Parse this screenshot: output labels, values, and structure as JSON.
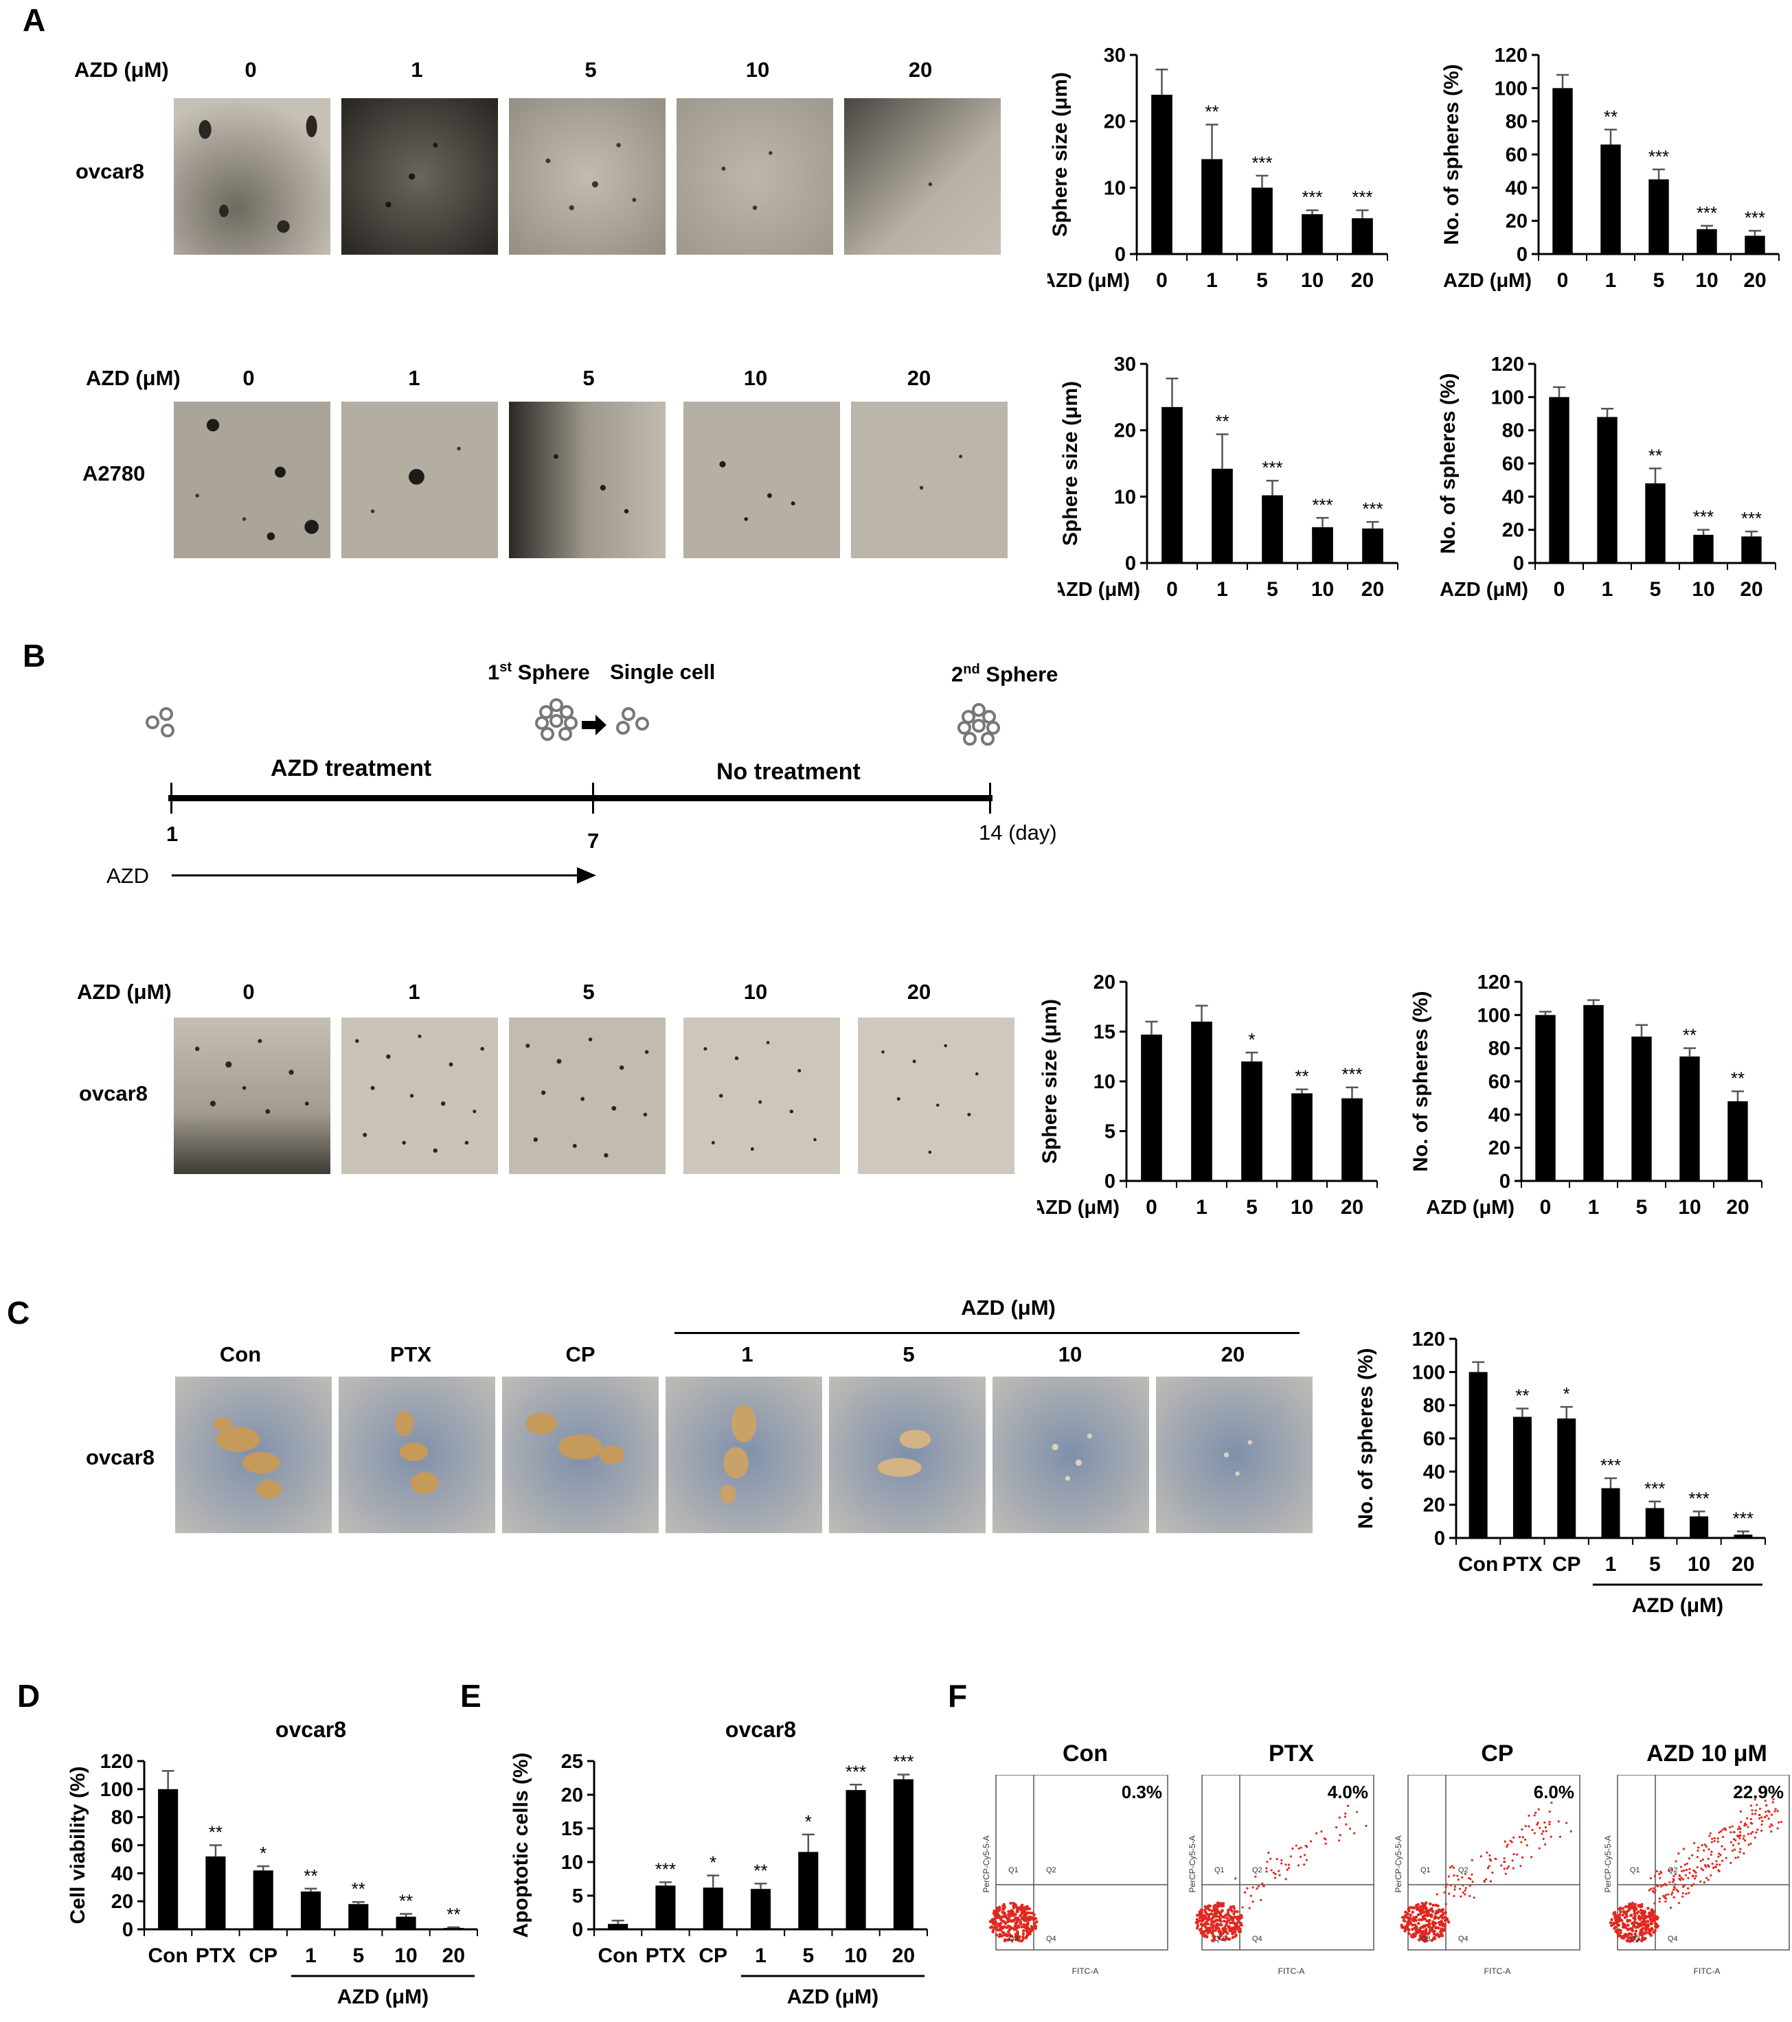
{
  "panel_labels": {
    "a": "A",
    "b": "B",
    "c": "C",
    "d": "D",
    "e": "E",
    "f": "F"
  },
  "azd_row_label": "AZD (μM)",
  "conc_labels": [
    "0",
    "1",
    "5",
    "10",
    "20"
  ],
  "cell_lines": {
    "ovcar8": "ovcar8",
    "a2780": "A2780"
  },
  "timeline": {
    "first_sphere_base": "1",
    "first_sphere_sup": "st",
    "first_sphere_word": " Sphere",
    "single_cell": "Single cell",
    "second_sphere_base": "2",
    "second_sphere_sup": "nd",
    "second_sphere_word": " Sphere",
    "azd_treatment": "AZD treatment",
    "no_treatment": "No treatment",
    "day_1": "1",
    "day_7": "7",
    "day_14": "14 (day)",
    "azd_arrow_label": "AZD"
  },
  "panel_c": {
    "group_header": "AZD (μM)",
    "column_labels": [
      "Con",
      "PTX",
      "CP",
      "1",
      "5",
      "10",
      "20"
    ]
  },
  "panel_f": {
    "titles": [
      "Con",
      "PTX",
      "CP",
      "AZD 10 μM"
    ],
    "percents": [
      "0.3%",
      "4.0%",
      "6.0%",
      "22.9%"
    ],
    "quadrants": [
      "Q1",
      "Q2",
      "Q3",
      "Q4"
    ],
    "x_axis": "FITC-A",
    "y_axis": "PerCP-Cy5-5-A"
  },
  "chart_data": [
    {
      "id": "A1",
      "type": "bar",
      "categories": [
        "0",
        "1",
        "5",
        "10",
        "20"
      ],
      "values": [
        24,
        14.3,
        10,
        6,
        5.4
      ],
      "errors": [
        3.8,
        5.2,
        1.8,
        0.6,
        1.2
      ],
      "sig": [
        "",
        "**",
        "***",
        "***",
        "***"
      ],
      "ylabel": "Sphere size (μm)",
      "xlabel": "AZD (μM)",
      "ylim": [
        0,
        30
      ],
      "yticks": [
        0,
        10,
        20,
        30
      ]
    },
    {
      "id": "A2",
      "type": "bar",
      "categories": [
        "0",
        "1",
        "5",
        "10",
        "20"
      ],
      "values": [
        100,
        66,
        45,
        15,
        11
      ],
      "errors": [
        8,
        9,
        6,
        2,
        3
      ],
      "sig": [
        "",
        "**",
        "***",
        "***",
        "***"
      ],
      "ylabel": "No. of spheres (%)",
      "xlabel": "AZD (μM)",
      "ylim": [
        0,
        120
      ],
      "yticks": [
        0,
        20,
        40,
        60,
        80,
        100,
        120
      ]
    },
    {
      "id": "A3",
      "type": "bar",
      "categories": [
        "0",
        "1",
        "5",
        "10",
        "20"
      ],
      "values": [
        23.5,
        14.2,
        10.2,
        5.4,
        5.2
      ],
      "errors": [
        4.3,
        5.2,
        2.2,
        1.4,
        1
      ],
      "sig": [
        "",
        "**",
        "***",
        "***",
        "***"
      ],
      "ylabel": "Sphere size (μm)",
      "xlabel": "AZD (μM)",
      "ylim": [
        0,
        30
      ],
      "yticks": [
        0,
        10,
        20,
        30
      ]
    },
    {
      "id": "A4",
      "type": "bar",
      "categories": [
        "0",
        "1",
        "5",
        "10",
        "20"
      ],
      "values": [
        100,
        88,
        48,
        17,
        16
      ],
      "errors": [
        6,
        5,
        9,
        3,
        3
      ],
      "sig": [
        "",
        "",
        "**",
        "***",
        "***"
      ],
      "ylabel": "No. of spheres (%)",
      "xlabel": "AZD (μM)",
      "ylim": [
        0,
        120
      ],
      "yticks": [
        0,
        20,
        40,
        60,
        80,
        100,
        120
      ]
    },
    {
      "id": "B1",
      "type": "bar",
      "categories": [
        "0",
        "1",
        "5",
        "10",
        "20"
      ],
      "values": [
        14.7,
        16,
        12,
        8.8,
        8.3
      ],
      "errors": [
        1.3,
        1.6,
        0.9,
        0.4,
        1.1
      ],
      "sig": [
        "",
        "",
        "*",
        "**",
        "***"
      ],
      "ylabel": "Sphere size (μm)",
      "xlabel": "AZD (μM)",
      "ylim": [
        0,
        20
      ],
      "yticks": [
        0,
        5,
        10,
        15,
        20
      ]
    },
    {
      "id": "B2",
      "type": "bar",
      "categories": [
        "0",
        "1",
        "5",
        "10",
        "20"
      ],
      "values": [
        100,
        106,
        87,
        75,
        48
      ],
      "errors": [
        2,
        3,
        7,
        5,
        6
      ],
      "sig": [
        "",
        "",
        "",
        "**",
        "**"
      ],
      "ylabel": "No. of spheres  (%)",
      "xlabel": "AZD (μM)",
      "ylim": [
        0,
        120
      ],
      "yticks": [
        0,
        20,
        40,
        60,
        80,
        100,
        120
      ]
    },
    {
      "id": "C1",
      "type": "bar",
      "categories": [
        "Con",
        "PTX",
        "CP",
        "1",
        "5",
        "10",
        "20"
      ],
      "values": [
        100,
        73,
        72,
        30,
        18,
        13,
        2
      ],
      "errors": [
        6,
        5,
        7,
        6,
        4,
        3,
        2
      ],
      "sig": [
        "",
        "**",
        "*",
        "***",
        "***",
        "***",
        "***"
      ],
      "ylabel": "No. of spheres  (%)",
      "group_label": "AZD (μM)",
      "ylim": [
        0,
        120
      ],
      "yticks": [
        0,
        20,
        40,
        60,
        80,
        100,
        120
      ]
    },
    {
      "id": "D1",
      "type": "bar",
      "title": "ovcar8",
      "categories": [
        "Con",
        "PTX",
        "CP",
        "1",
        "5",
        "10",
        "20"
      ],
      "values": [
        100,
        52,
        42,
        27,
        18,
        9,
        1
      ],
      "errors": [
        13,
        8,
        3,
        2,
        1.5,
        2,
        0.5
      ],
      "sig": [
        "",
        "**",
        "*",
        "**",
        "**",
        "**",
        "**"
      ],
      "ylabel": "Cell viability (%)",
      "group_label": "AZD (μM)",
      "ylim": [
        0,
        120
      ],
      "yticks": [
        0,
        20,
        40,
        60,
        80,
        100,
        120
      ]
    },
    {
      "id": "E1",
      "type": "bar",
      "title": "ovcar8",
      "categories": [
        "Con",
        "PTX",
        "CP",
        "1",
        "5",
        "10",
        "20"
      ],
      "values": [
        0.8,
        6.5,
        6.2,
        6,
        11.5,
        20.7,
        22.3
      ],
      "errors": [
        0.5,
        0.5,
        1.8,
        0.8,
        2.6,
        0.8,
        0.7
      ],
      "sig": [
        "",
        "***",
        "*",
        "**",
        "*",
        "***",
        "***"
      ],
      "ylabel": "Apoptotic cells (%)",
      "group_label": "AZD (μM)",
      "ylim": [
        0,
        25
      ],
      "yticks": [
        0,
        5,
        10,
        15,
        20,
        25
      ]
    }
  ]
}
